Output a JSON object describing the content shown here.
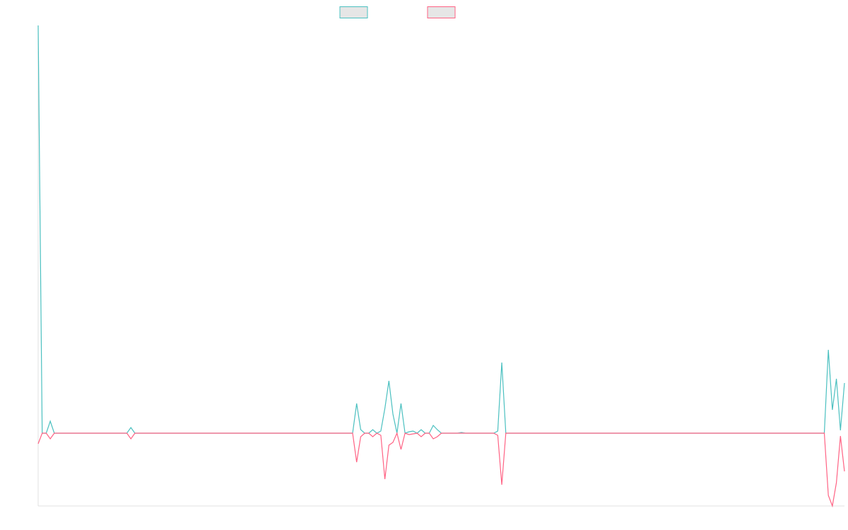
{
  "chart_data": {
    "type": "line",
    "ylim": [
      -103,
      577
    ],
    "series": [
      {
        "color": "#4bc0c0",
        "values": [
          577,
          0,
          0,
          17,
          0,
          0,
          0,
          0,
          0,
          0,
          0,
          0,
          0,
          0,
          0,
          0,
          0,
          0,
          0,
          0,
          0,
          0,
          0,
          8,
          0,
          0,
          0,
          0,
          0,
          0,
          0,
          0,
          0,
          0,
          0,
          0,
          0,
          0,
          0,
          0,
          0,
          0,
          0,
          0,
          0,
          0,
          0,
          0,
          0,
          0,
          0,
          0,
          0,
          0,
          0,
          0,
          0,
          0,
          0,
          0,
          0,
          0,
          0,
          0,
          0,
          0,
          0,
          0,
          0,
          0,
          0,
          0,
          0,
          0,
          0,
          0,
          0,
          0,
          0,
          42,
          5,
          0,
          0,
          5,
          0,
          3,
          35,
          74,
          27,
          0,
          42,
          0,
          2,
          3,
          0,
          5,
          0,
          0,
          11,
          5,
          0,
          0,
          0,
          0,
          0,
          1,
          0,
          0,
          0,
          0,
          0,
          0,
          0,
          0,
          3,
          100,
          0,
          0,
          0,
          0,
          0,
          0,
          0,
          0,
          0,
          0,
          0,
          0,
          0,
          0,
          0,
          0,
          0,
          0,
          0,
          0,
          0,
          0,
          0,
          0,
          0,
          0,
          0,
          0,
          0,
          0,
          0,
          0,
          0,
          0,
          0,
          0,
          0,
          0,
          0,
          0,
          0,
          0,
          0,
          0,
          0,
          0,
          0,
          0,
          0,
          0,
          0,
          0,
          0,
          0,
          0,
          0,
          0,
          0,
          0,
          0,
          0,
          0,
          0,
          0,
          0,
          0,
          0,
          0,
          0,
          0,
          0,
          0,
          0,
          0,
          0,
          0,
          0,
          0,
          0,
          0,
          118,
          33,
          77,
          4,
          71
        ]
      },
      {
        "color": "#ff6384",
        "values": [
          -15,
          0,
          0,
          -8,
          0,
          0,
          0,
          0,
          0,
          0,
          0,
          0,
          0,
          0,
          0,
          0,
          0,
          0,
          0,
          0,
          0,
          0,
          0,
          -8,
          0,
          0,
          0,
          0,
          0,
          0,
          0,
          0,
          0,
          0,
          0,
          0,
          0,
          0,
          0,
          0,
          0,
          0,
          0,
          0,
          0,
          0,
          0,
          0,
          0,
          0,
          0,
          0,
          0,
          0,
          0,
          0,
          0,
          0,
          0,
          0,
          0,
          0,
          0,
          0,
          0,
          0,
          0,
          0,
          0,
          0,
          0,
          0,
          0,
          0,
          0,
          0,
          0,
          0,
          0,
          -41,
          -5,
          0,
          0,
          -5,
          0,
          -3,
          -65,
          -17,
          -13,
          0,
          -23,
          0,
          -2,
          -1,
          0,
          -5,
          0,
          0,
          -8,
          -5,
          0,
          0,
          0,
          0,
          0,
          0,
          0,
          0,
          0,
          0,
          0,
          0,
          0,
          0,
          -3,
          -73,
          0,
          0,
          0,
          0,
          0,
          0,
          0,
          0,
          0,
          0,
          0,
          0,
          0,
          0,
          0,
          0,
          0,
          0,
          0,
          0,
          0,
          0,
          0,
          0,
          0,
          0,
          0,
          0,
          0,
          0,
          0,
          0,
          0,
          0,
          0,
          0,
          0,
          0,
          0,
          0,
          0,
          0,
          0,
          0,
          0,
          0,
          0,
          0,
          0,
          0,
          0,
          0,
          0,
          0,
          0,
          0,
          0,
          0,
          0,
          0,
          0,
          0,
          0,
          0,
          0,
          0,
          0,
          0,
          0,
          0,
          0,
          0,
          0,
          0,
          0,
          0,
          0,
          0,
          0,
          0,
          -88,
          -103,
          -70,
          -4,
          -54
        ]
      }
    ]
  }
}
